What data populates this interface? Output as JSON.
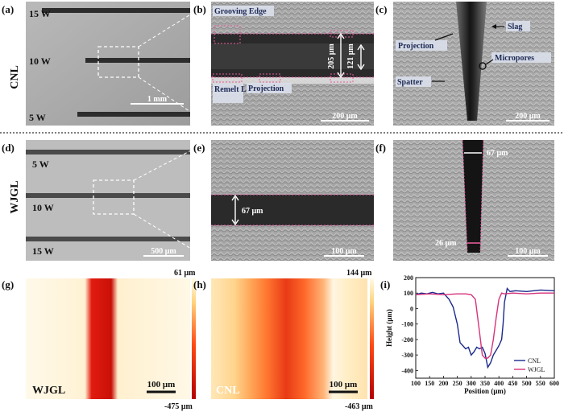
{
  "panels": {
    "a": {
      "label": "(a)",
      "row_label": "CNL",
      "powers": [
        "15 W",
        "10 W",
        "5 W"
      ],
      "scale": "1 mm"
    },
    "b": {
      "label": "(b)",
      "callouts": [
        "Grooving Edge",
        "Remelt Layer",
        "Projection"
      ],
      "width_outer": "205 μm",
      "width_inner": "121 μm",
      "scale": "200 μm"
    },
    "c": {
      "label": "(c)",
      "callouts": [
        "Slag",
        "Projection",
        "Micropores",
        "Spatter"
      ],
      "scale": "200 μm"
    },
    "d": {
      "label": "(d)",
      "row_label": "WJGL",
      "powers": [
        "5 W",
        "10 W",
        "15 W"
      ],
      "scale": "500 μm"
    },
    "e": {
      "label": "(e)",
      "width": "67 μm",
      "scale": "100 μm"
    },
    "f": {
      "label": "(f)",
      "top_width": "67 μm",
      "bottom_width": "26 μm",
      "scale": "100 μm"
    },
    "g": {
      "label": "(g)",
      "name": "WJGL",
      "max": "61 μm",
      "min": "-475 μm",
      "scale": "100 μm"
    },
    "h": {
      "label": "(h)",
      "name": "CNL",
      "max": "144 μm",
      "min": "-463 μm",
      "scale": "100 μm"
    },
    "i": {
      "label": "(i)"
    }
  },
  "chart_data": {
    "type": "line",
    "xlabel": "Position (μm)",
    "ylabel": "Height (μm)",
    "xlim": [
      100,
      600
    ],
    "ylim": [
      -450,
      200
    ],
    "xticks": [
      100,
      150,
      200,
      250,
      300,
      350,
      400,
      450,
      500,
      550,
      600
    ],
    "yticks": [
      200,
      100,
      0,
      -100,
      -200,
      -300,
      -400
    ],
    "series": [
      {
        "name": "CNL",
        "color": "#1a2a8c",
        "x": [
          100,
          120,
          140,
          160,
          180,
          200,
          220,
          235,
          250,
          260,
          270,
          280,
          290,
          300,
          310,
          320,
          330,
          340,
          350,
          360,
          370,
          380,
          390,
          400,
          410,
          415,
          420,
          430,
          440,
          460,
          500,
          550,
          600
        ],
        "y": [
          90,
          100,
          95,
          105,
          95,
          100,
          60,
          10,
          -100,
          -220,
          -240,
          -260,
          -250,
          -300,
          -280,
          -250,
          -260,
          -250,
          -290,
          -380,
          -350,
          -300,
          -270,
          -240,
          -200,
          -100,
          40,
          130,
          110,
          115,
          110,
          120,
          115
        ]
      },
      {
        "name": "WJGL",
        "color": "#d6337a",
        "x": [
          100,
          150,
          200,
          250,
          280,
          300,
          315,
          330,
          340,
          350,
          360,
          370,
          380,
          390,
          400,
          410,
          420,
          450,
          500,
          550,
          600
        ],
        "y": [
          90,
          95,
          90,
          95,
          95,
          90,
          60,
          -150,
          -300,
          -320,
          -320,
          -300,
          -200,
          -60,
          60,
          100,
          95,
          100,
          95,
          100,
          100
        ]
      }
    ]
  }
}
